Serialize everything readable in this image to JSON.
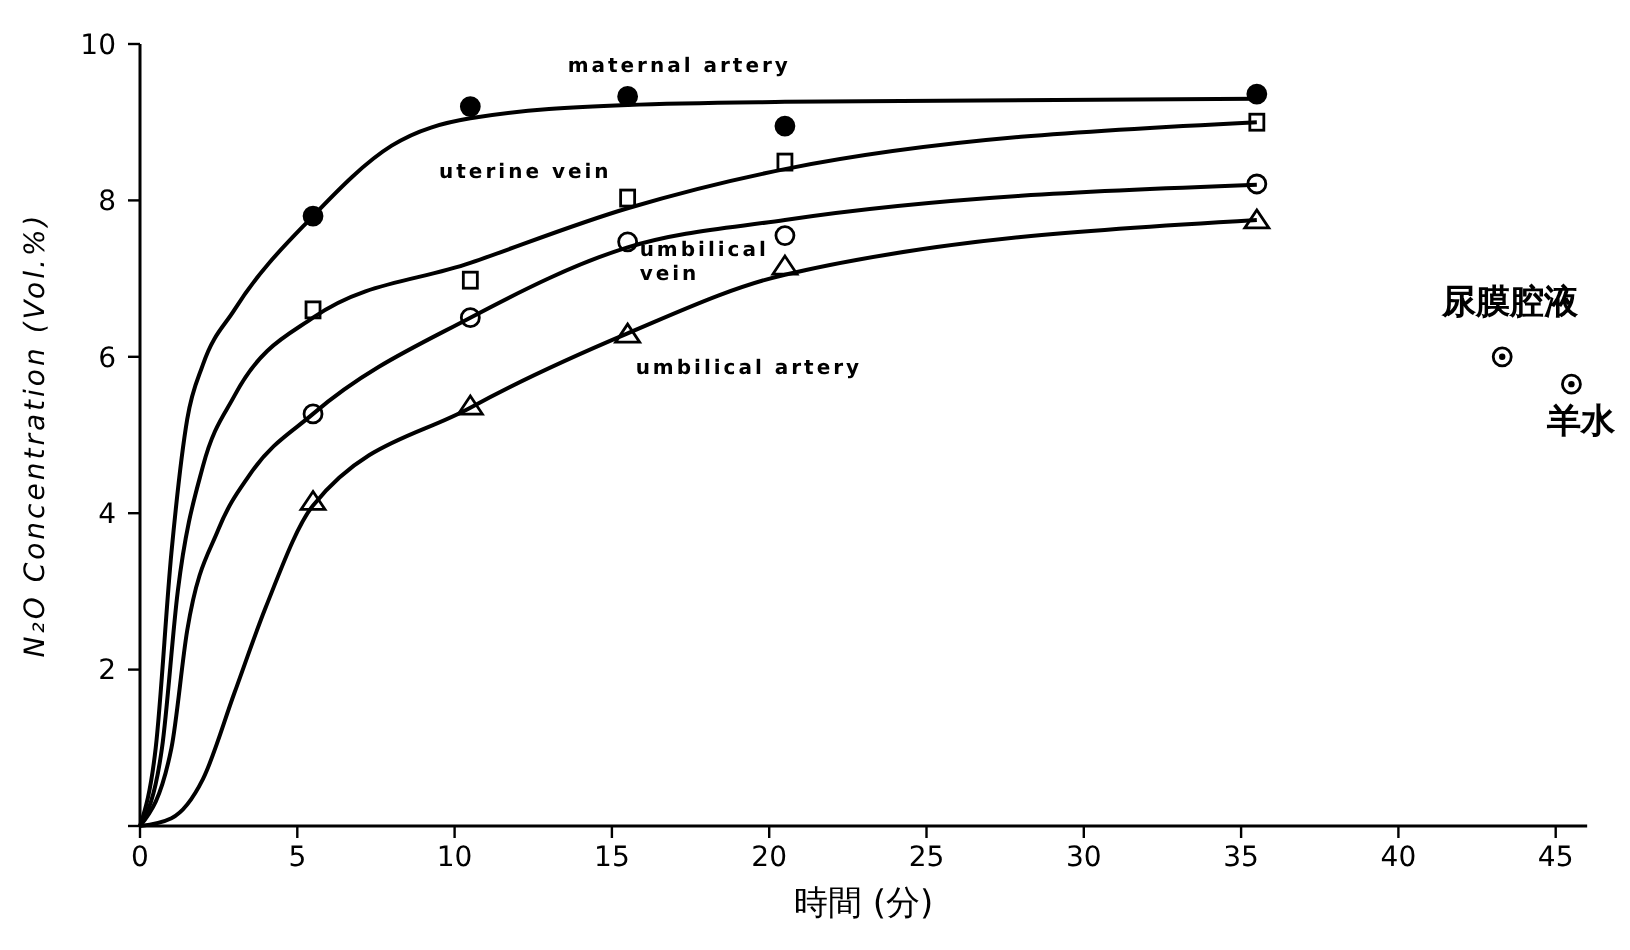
{
  "chart_data": {
    "type": "scatter",
    "xlabel": "時間 (分)",
    "ylabel": "N₂O Concentration (Vol.%)",
    "xlim": [
      0,
      46
    ],
    "ylim": [
      0,
      10
    ],
    "xticks": [
      0,
      5,
      10,
      15,
      20,
      25,
      30,
      35,
      40,
      45
    ],
    "yticks": [
      {
        "value": 0,
        "label": null
      },
      2,
      4,
      6,
      8,
      10
    ],
    "grid": false,
    "legend": false,
    "series": [
      {
        "name": "maternal artery",
        "marker": "circle",
        "color": "#000000",
        "x": [
          5.5,
          10.5,
          15.5,
          20.5,
          35.5
        ],
        "values": [
          7.8,
          9.2,
          9.33,
          8.95,
          9.36
        ]
      },
      {
        "name": "uterine vein",
        "marker": "square",
        "color": "#000000",
        "x": [
          5.5,
          10.5,
          15.5,
          20.5,
          35.5
        ],
        "values": [
          6.6,
          6.98,
          8.03,
          8.49,
          9.0
        ]
      },
      {
        "name": "umbilical vein",
        "marker": "circle-open",
        "color": "#000000",
        "x": [
          5.5,
          10.5,
          15.5,
          20.5,
          35.5
        ],
        "values": [
          5.27,
          6.5,
          7.47,
          7.55,
          8.21
        ]
      },
      {
        "name": "umbilical artery",
        "marker": "triangle",
        "color": "#000000",
        "x": [
          5.5,
          10.5,
          15.5,
          20.5,
          35.5
        ],
        "values": [
          4.15,
          5.37,
          6.29,
          7.16,
          7.75
        ]
      },
      {
        "name": "尿膜腔液",
        "marker": "circle-dot",
        "color": "#000000",
        "x": [
          43.3
        ],
        "values": [
          6.0
        ]
      },
      {
        "name": "羊水",
        "marker": "circle-dot",
        "color": "#000000",
        "x": [
          45.5
        ],
        "values": [
          5.65
        ]
      },
      {
        "type": "line",
        "marker": "none",
        "color": "#000000",
        "x": [
          0,
          0.5,
          1,
          1.5,
          2,
          3,
          5.5,
          8,
          10.5,
          15.5,
          20.5,
          35.5
        ],
        "values": [
          0,
          1,
          3.5,
          5.2,
          5.9,
          6.6,
          7.8,
          8.7,
          9.05,
          9.22,
          9.26,
          9.3
        ]
      },
      {
        "type": "line",
        "marker": "none",
        "color": "#000000",
        "x": [
          0,
          0.7,
          1.2,
          2,
          3,
          5.5,
          10.5,
          15.5,
          20.5,
          35.5
        ],
        "values": [
          0,
          1,
          3,
          4.6,
          5.5,
          6.5,
          7.2,
          7.9,
          8.4,
          9.0
        ]
      },
      {
        "type": "line",
        "marker": "none",
        "color": "#000000",
        "x": [
          0,
          1,
          1.5,
          2.5,
          3.5,
          5.5,
          10.5,
          15.5,
          20.5,
          35.5
        ],
        "values": [
          0,
          1,
          2.5,
          3.8,
          4.5,
          5.27,
          6.5,
          7.4,
          7.75,
          8.2
        ]
      },
      {
        "type": "line",
        "marker": "none",
        "color": "#000000",
        "x": [
          0,
          1,
          2,
          3,
          4,
          5.5,
          10.5,
          15.5,
          20.5,
          35.5
        ],
        "values": [
          0,
          0.1,
          0.6,
          1.7,
          2.8,
          4.1,
          5.35,
          6.3,
          7.05,
          7.75
        ]
      }
    ]
  }
}
